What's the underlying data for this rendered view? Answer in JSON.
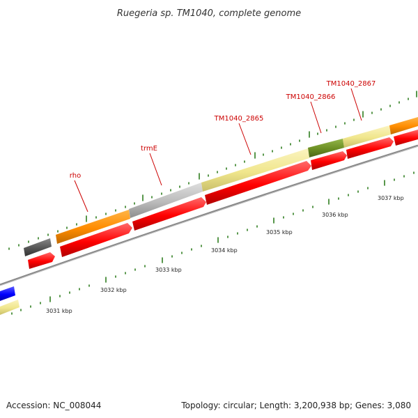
{
  "title": "Ruegeria sp. TM1040, complete genome",
  "footer": {
    "accession": "Accession: NC_008044",
    "summary": "Topology: circular; Length: 3,200,938 bp; Genes: 3,080"
  },
  "colors": {
    "cds_red": "#ff0000",
    "gene_orange": "#ff8c00",
    "gene_khaki": "#f0e68c",
    "gene_gray": "#bbbbbb",
    "gene_darkgray": "#555555",
    "gene_olive": "#6b8e23",
    "gene_blue": "#0000ff",
    "backbone": "#888888",
    "tick_green": "#006400",
    "label_red": "#cc0000"
  },
  "gene_labels": [
    {
      "name": "rho",
      "text": "rho"
    },
    {
      "name": "trmE",
      "text": "trmE"
    },
    {
      "name": "TM1040_2865",
      "text": "TM1040_2865"
    },
    {
      "name": "TM1040_2866",
      "text": "TM1040_2866"
    },
    {
      "name": "TM1040_2867",
      "text": "TM1040_2867"
    }
  ],
  "scale_labels": [
    {
      "name": "3031",
      "text": "3031 kbp"
    },
    {
      "name": "3032",
      "text": "3032 kbp"
    },
    {
      "name": "3033",
      "text": "3033 kbp"
    },
    {
      "name": "3034",
      "text": "3034 kbp"
    },
    {
      "name": "3035",
      "text": "3035 kbp"
    },
    {
      "name": "3036",
      "text": "3036 kbp"
    },
    {
      "name": "3037",
      "text": "3037 kbp"
    }
  ]
}
